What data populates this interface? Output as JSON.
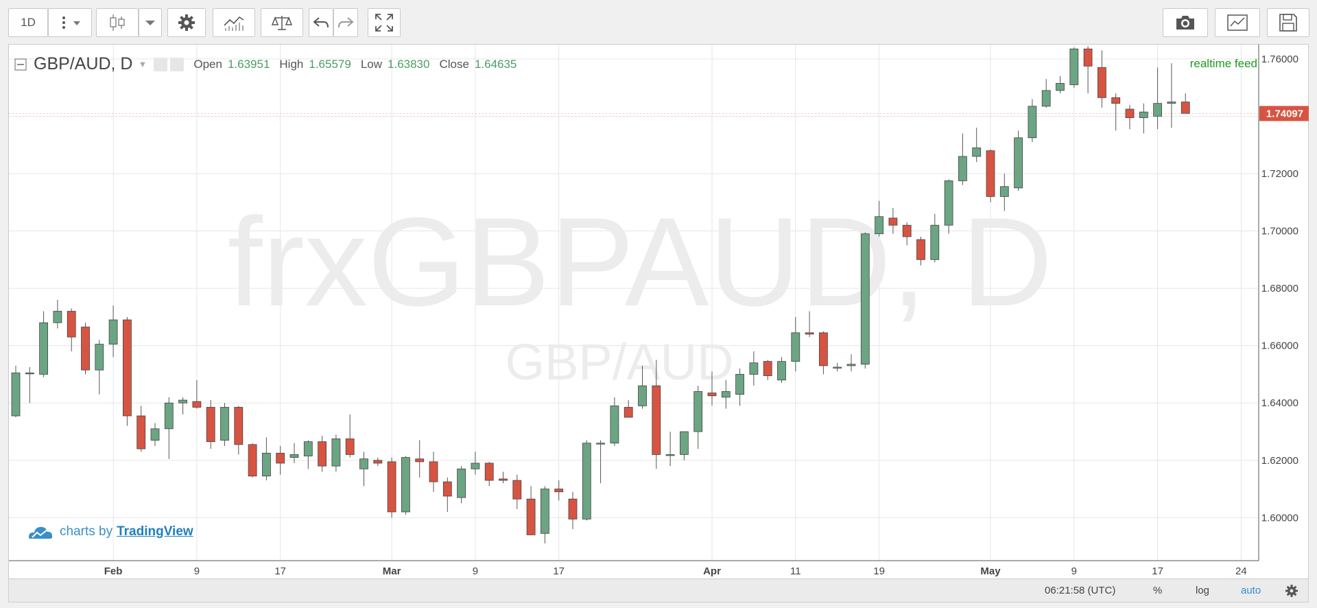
{
  "toolbar": {
    "interval": "1D"
  },
  "legend": {
    "symbol": "GBP/AUD, D",
    "open_label": "Open",
    "open": "1.63951",
    "high_label": "High",
    "high": "1.65579",
    "low_label": "Low",
    "low": "1.63830",
    "close_label": "Close",
    "close": "1.64635"
  },
  "realtime": "realtime feed",
  "watermark": {
    "main": "frxGBPAUD, D",
    "sub": "GBP/AUD"
  },
  "credit": {
    "prefix": "charts by",
    "link": "TradingView"
  },
  "bottom": {
    "time": "06:21:58 (UTC)",
    "percent": "%",
    "log": "log",
    "auto": "auto"
  },
  "colors": {
    "up": "#6ba583",
    "down": "#d75442",
    "price_tag": "#d75442",
    "grid": "#e6e6e6"
  },
  "chart_data": {
    "type": "candlestick",
    "series_name": "GBP/AUD",
    "ylim": [
      1.585,
      1.765
    ],
    "y_ticks": [
      "1.60000",
      "1.62000",
      "1.64000",
      "1.66000",
      "1.68000",
      "1.70000",
      "1.72000",
      "1.74000",
      "1.76000"
    ],
    "x_ticks": [
      {
        "i": 7,
        "label": "Feb"
      },
      {
        "i": 13,
        "label": "9"
      },
      {
        "i": 19,
        "label": "17"
      },
      {
        "i": 27,
        "label": "Mar"
      },
      {
        "i": 33,
        "label": "9"
      },
      {
        "i": 39,
        "label": "17"
      },
      {
        "i": 50,
        "label": "Apr"
      },
      {
        "i": 56,
        "label": "11"
      },
      {
        "i": 62,
        "label": "19"
      },
      {
        "i": 70,
        "label": "May"
      },
      {
        "i": 76,
        "label": "9"
      },
      {
        "i": 82,
        "label": "17"
      },
      {
        "i": 88,
        "label": "24"
      }
    ],
    "last_price": "1.74097",
    "candles": [
      [
        1.6355,
        1.653,
        1.635,
        1.6505
      ],
      [
        1.6505,
        1.6525,
        1.64,
        1.6505
      ],
      [
        1.65,
        1.672,
        1.649,
        1.668
      ],
      [
        1.668,
        1.676,
        1.666,
        1.672
      ],
      [
        1.672,
        1.673,
        1.658,
        1.663
      ],
      [
        1.6665,
        1.668,
        1.65,
        1.6515
      ],
      [
        1.6515,
        1.662,
        1.643,
        1.6605
      ],
      [
        1.6605,
        1.674,
        1.656,
        1.669
      ],
      [
        1.669,
        1.67,
        1.632,
        1.6355
      ],
      [
        1.6355,
        1.639,
        1.623,
        1.624
      ],
      [
        1.627,
        1.633,
        1.625,
        1.631
      ],
      [
        1.631,
        1.642,
        1.6205,
        1.64
      ],
      [
        1.64,
        1.642,
        1.636,
        1.641
      ],
      [
        1.6405,
        1.648,
        1.638,
        1.6385
      ],
      [
        1.6385,
        1.641,
        1.624,
        1.6265
      ],
      [
        1.627,
        1.64,
        1.625,
        1.6385
      ],
      [
        1.6385,
        1.639,
        1.622,
        1.6255
      ],
      [
        1.6255,
        1.626,
        1.614,
        1.6145
      ],
      [
        1.6145,
        1.628,
        1.613,
        1.6225
      ],
      [
        1.6225,
        1.625,
        1.615,
        1.619
      ],
      [
        1.621,
        1.626,
        1.619,
        1.622
      ],
      [
        1.6215,
        1.627,
        1.617,
        1.6265
      ],
      [
        1.6265,
        1.6285,
        1.616,
        1.618
      ],
      [
        1.618,
        1.629,
        1.616,
        1.6275
      ],
      [
        1.6275,
        1.636,
        1.621,
        1.622
      ],
      [
        1.617,
        1.623,
        1.611,
        1.6205
      ],
      [
        1.62,
        1.621,
        1.618,
        1.619
      ],
      [
        1.6195,
        1.621,
        1.6,
        1.602
      ],
      [
        1.602,
        1.6215,
        1.601,
        1.621
      ],
      [
        1.6205,
        1.627,
        1.614,
        1.6195
      ],
      [
        1.6195,
        1.623,
        1.609,
        1.6125
      ],
      [
        1.6125,
        1.614,
        1.602,
        1.6075
      ],
      [
        1.607,
        1.618,
        1.605,
        1.617
      ],
      [
        1.617,
        1.623,
        1.615,
        1.619
      ],
      [
        1.619,
        1.6195,
        1.611,
        1.613
      ],
      [
        1.6135,
        1.616,
        1.612,
        1.613
      ],
      [
        1.613,
        1.615,
        1.603,
        1.6065
      ],
      [
        1.6065,
        1.611,
        1.594,
        1.594
      ],
      [
        1.5945,
        1.611,
        1.591,
        1.61
      ],
      [
        1.61,
        1.613,
        1.606,
        1.609
      ],
      [
        1.6065,
        1.609,
        1.596,
        1.5995
      ],
      [
        1.5995,
        1.627,
        1.599,
        1.626
      ],
      [
        1.626,
        1.627,
        1.612,
        1.626
      ],
      [
        1.626,
        1.642,
        1.625,
        1.639
      ],
      [
        1.6385,
        1.641,
        1.635,
        1.635
      ],
      [
        1.639,
        1.653,
        1.638,
        1.646
      ],
      [
        1.646,
        1.655,
        1.617,
        1.622
      ],
      [
        1.622,
        1.63,
        1.618,
        1.622
      ],
      [
        1.622,
        1.629,
        1.62,
        1.63
      ],
      [
        1.63,
        1.646,
        1.624,
        1.644
      ],
      [
        1.6435,
        1.651,
        1.639,
        1.6425
      ],
      [
        1.642,
        1.648,
        1.638,
        1.644
      ],
      [
        1.643,
        1.652,
        1.639,
        1.65
      ],
      [
        1.65,
        1.658,
        1.646,
        1.654
      ],
      [
        1.6545,
        1.655,
        1.648,
        1.6495
      ],
      [
        1.648,
        1.656,
        1.647,
        1.6545
      ],
      [
        1.6545,
        1.67,
        1.651,
        1.6645
      ],
      [
        1.6645,
        1.672,
        1.663,
        1.664
      ],
      [
        1.6645,
        1.665,
        1.65,
        1.653
      ],
      [
        1.6525,
        1.654,
        1.651,
        1.6525
      ],
      [
        1.653,
        1.657,
        1.651,
        1.6535
      ],
      [
        1.6535,
        1.6995,
        1.652,
        1.699
      ],
      [
        1.699,
        1.7105,
        1.698,
        1.705
      ],
      [
        1.7045,
        1.708,
        1.699,
        1.702
      ],
      [
        1.702,
        1.703,
        1.695,
        1.698
      ],
      [
        1.697,
        1.698,
        1.688,
        1.69
      ],
      [
        1.69,
        1.706,
        1.689,
        1.702
      ],
      [
        1.702,
        1.718,
        1.699,
        1.7175
      ],
      [
        1.7175,
        1.734,
        1.716,
        1.726
      ],
      [
        1.726,
        1.736,
        1.724,
        1.729
      ],
      [
        1.728,
        1.7285,
        1.71,
        1.712
      ],
      [
        1.712,
        1.72,
        1.707,
        1.7155
      ],
      [
        1.715,
        1.735,
        1.714,
        1.7325
      ],
      [
        1.7325,
        1.746,
        1.731,
        1.7435
      ],
      [
        1.7435,
        1.753,
        1.743,
        1.749
      ],
      [
        1.749,
        1.754,
        1.748,
        1.7515
      ],
      [
        1.751,
        1.764,
        1.75,
        1.7635
      ],
      [
        1.7635,
        1.7645,
        1.748,
        1.7575
      ],
      [
        1.757,
        1.763,
        1.743,
        1.7465
      ],
      [
        1.7465,
        1.748,
        1.735,
        1.7445
      ],
      [
        1.7425,
        1.744,
        1.7355,
        1.7395
      ],
      [
        1.7395,
        1.7445,
        1.734,
        1.7415
      ],
      [
        1.74,
        1.757,
        1.7355,
        1.7445
      ],
      [
        1.7445,
        1.7585,
        1.736,
        1.745
      ],
      [
        1.745,
        1.748,
        1.741,
        1.741
      ]
    ]
  }
}
